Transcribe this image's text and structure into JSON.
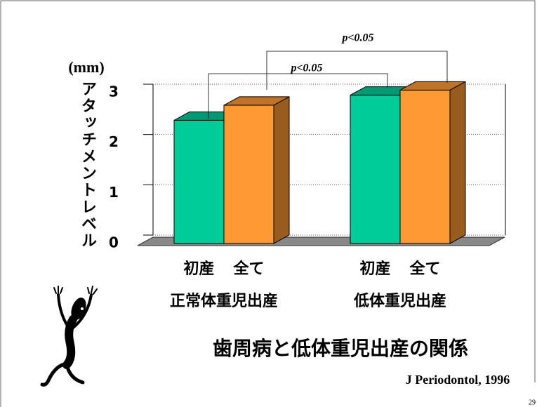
{
  "chart_data": {
    "type": "bar3d",
    "title": "歯周病と低体重児出産の関係",
    "y_unit": "(mm)",
    "ylabel": "アタッチメントレベル",
    "categories": [
      "正常体重児出産",
      "低体重児出産"
    ],
    "series": [
      {
        "name": "初産",
        "color": "#00cc99",
        "values": [
          2.45,
          2.95
        ]
      },
      {
        "name": "全て",
        "color": "#ff9933",
        "values": [
          2.75,
          3.05
        ]
      }
    ],
    "ylim": [
      0,
      3
    ],
    "yticks": [
      0,
      1,
      2,
      3
    ],
    "grid": true,
    "annotations": [
      "p<0.05",
      "p<0.05"
    ],
    "source": "J Periodontol, 1996",
    "page_number": "29"
  }
}
